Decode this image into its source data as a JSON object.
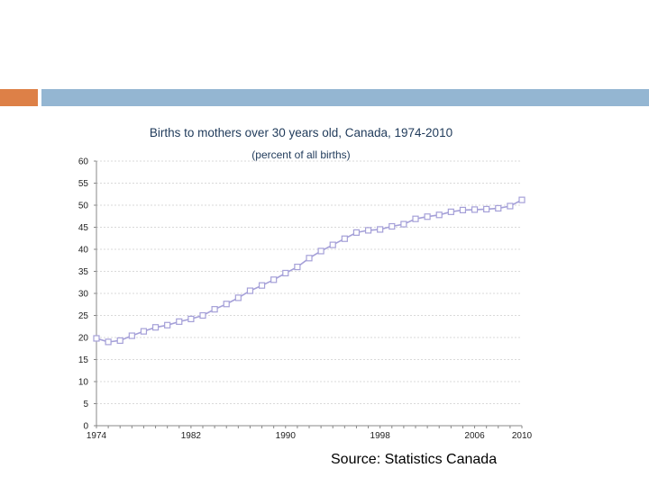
{
  "colors": {
    "accent_orange": "#dd8047",
    "accent_blue": "#94b6d2",
    "series": "#a5a0d8",
    "title": "#1f3a5a",
    "grid": "#d9d9d9"
  },
  "source": "Source: Statistics Canada",
  "chart_data": {
    "type": "line",
    "title": "Births to mothers over 30 years old, Canada, 1974-2010",
    "subtitle": "(percent of all births)",
    "xlabel": "",
    "ylabel": "",
    "ylim": [
      0,
      60
    ],
    "yticks": [
      0,
      5,
      10,
      15,
      20,
      25,
      30,
      35,
      40,
      45,
      50,
      55,
      60
    ],
    "xlim": [
      1974,
      2010
    ],
    "xticks": [
      1974,
      1982,
      1990,
      1998,
      2006,
      2010
    ],
    "grid": true,
    "marker": "square",
    "series": [
      {
        "name": "Births to mothers over 30",
        "x": [
          1974,
          1975,
          1976,
          1977,
          1978,
          1979,
          1980,
          1981,
          1982,
          1983,
          1984,
          1985,
          1986,
          1987,
          1988,
          1989,
          1990,
          1991,
          1992,
          1993,
          1994,
          1995,
          1996,
          1997,
          1998,
          1999,
          2000,
          2001,
          2002,
          2003,
          2004,
          2005,
          2006,
          2007,
          2008,
          2009,
          2010
        ],
        "values": [
          19.8,
          19.0,
          19.3,
          20.4,
          21.4,
          22.3,
          22.8,
          23.6,
          24.2,
          25.0,
          26.4,
          27.6,
          29.0,
          30.6,
          31.8,
          33.1,
          34.6,
          36.0,
          38.0,
          39.6,
          41.0,
          42.4,
          43.8,
          44.3,
          44.5,
          45.2,
          45.7,
          46.9,
          47.4,
          47.8,
          48.5,
          48.9,
          49.0,
          49.1,
          49.3,
          49.8,
          51.2
        ]
      }
    ]
  }
}
